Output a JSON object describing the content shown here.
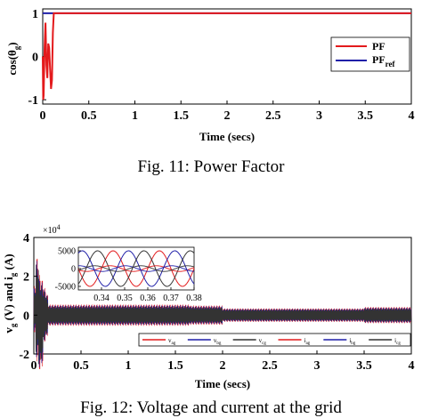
{
  "captions": {
    "fig11": "Fig. 11: Power Factor",
    "fig12": "Fig. 12: Voltage and current at the grid"
  },
  "chart_data": [
    {
      "type": "line",
      "title": "",
      "xlabel": "Time (secs)",
      "ylabel": "cos(θ_g)",
      "xlim": [
        0,
        4
      ],
      "ylim": [
        -1.1,
        1.1
      ],
      "x_ticks": [
        "0",
        "0.5",
        "1",
        "1.5",
        "2",
        "2.5",
        "3",
        "3.5",
        "4"
      ],
      "y_ticks": [
        "-1",
        "0",
        "1"
      ],
      "grid": false,
      "legend": "top-right",
      "series": [
        {
          "name": "PF",
          "color": "#e31a1c",
          "x": [
            0,
            0.005,
            0.01,
            0.02,
            0.03,
            0.04,
            0.05,
            0.06,
            0.07,
            0.08,
            0.09,
            0.1,
            0.11,
            0.12,
            4
          ],
          "y": [
            0,
            -1,
            -0.9,
            0.2,
            0.78,
            -0.2,
            -0.5,
            0.3,
            0.2,
            -0.3,
            -0.75,
            -0.55,
            0.55,
            1,
            1
          ]
        },
        {
          "name": "PF_ref",
          "color": "#1f1fa8",
          "x": [
            0,
            4
          ],
          "y": [
            1,
            1
          ]
        }
      ]
    },
    {
      "type": "line",
      "title": "",
      "xlabel": "Time (secs)",
      "ylabel": "v_g (V) and i_g (A)",
      "y_multiplier": "×10^4",
      "xlim": [
        0,
        4
      ],
      "ylim": [
        -2,
        4
      ],
      "x_ticks": [
        "0",
        "0.5",
        "1",
        "1.5",
        "2",
        "2.5",
        "3",
        "3.5",
        "4"
      ],
      "y_ticks": [
        "4",
        "2",
        "0",
        "-2"
      ],
      "grid": false,
      "legend": "bottom-right",
      "series": [
        {
          "name": "v_ag",
          "color": "#e31a1c"
        },
        {
          "name": "v_bg",
          "color": "#1f1fa8"
        },
        {
          "name": "v_cg",
          "color": "#333333"
        },
        {
          "name": "i_ag",
          "color": "#e31a1c"
        },
        {
          "name": "i_bg",
          "color": "#1f1fa8"
        },
        {
          "name": "i_cg",
          "color": "#333333"
        }
      ],
      "inset": {
        "xlim": [
          0.33,
          0.38
        ],
        "ylim": [
          -6000,
          6000
        ],
        "x_ticks": [
          "0.34",
          "0.35",
          "0.36",
          "0.37",
          "0.38"
        ],
        "y_ticks": [
          "5000",
          "0",
          "-5000"
        ],
        "voltage_amplitude": 5000,
        "current_amplitude": 800,
        "frequency_hz": 50
      }
    }
  ]
}
